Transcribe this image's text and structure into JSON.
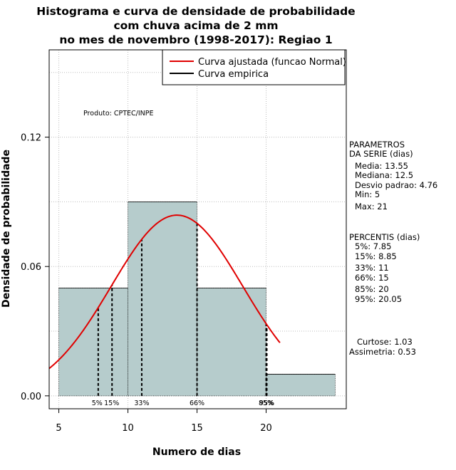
{
  "chart_data": {
    "type": "bar",
    "title_lines": [
      "Histograma e curva de densidade de probabilidade",
      "com chuva acima de 2 mm",
      "no mes de novembro (1998-2017): Regiao 1"
    ],
    "xlabel": "Numero de dias",
    "ylabel": "Densidade de probabilidade",
    "xlim": [
      4.3,
      25.8
    ],
    "ylim": [
      -0.006,
      0.1605
    ],
    "x_ticks": [
      5,
      10,
      15,
      20
    ],
    "x_tick_labels": [
      "5",
      "10",
      "15",
      "20"
    ],
    "y_ticks": [
      0.0,
      0.06,
      0.12
    ],
    "y_tick_labels": [
      "0.00",
      "0.06",
      "0.12"
    ],
    "grid": true,
    "grid_x": [
      5,
      10,
      15,
      20
    ],
    "grid_y": [
      0.0,
      0.03,
      0.06,
      0.09,
      0.12,
      0.15
    ],
    "bins": [
      {
        "x0": 5,
        "x1": 10,
        "density": 0.05
      },
      {
        "x0": 10,
        "x1": 15,
        "density": 0.09
      },
      {
        "x0": 15,
        "x1": 20,
        "density": 0.05
      },
      {
        "x0": 20,
        "x1": 25,
        "density": 0.01
      }
    ],
    "bar_color": "#b6cccc",
    "normal_curve": {
      "mean": 13.55,
      "sd": 4.76,
      "x_range": [
        4.3,
        21
      ],
      "color": "#e00000"
    },
    "percentile_lines": [
      {
        "x": 7.85,
        "label": "5%"
      },
      {
        "x": 8.85,
        "label": "15%"
      },
      {
        "x": 11,
        "label": "33%"
      },
      {
        "x": 15,
        "label": "66%"
      },
      {
        "x": 20,
        "label": "85%"
      },
      {
        "x": 20.05,
        "label": "95%"
      }
    ],
    "legend": {
      "position": "top-right",
      "entries": [
        {
          "label": "Curva ajustada (funcao Normal)",
          "color": "#e00000"
        },
        {
          "label": "Curva empirica",
          "color": "#000000"
        }
      ]
    },
    "annotation": "Produto: CPTEC/INPE"
  },
  "side_panel": {
    "parametros": [
      "PARAMETROS",
      "DA SERIE (dias)",
      "Media: 13.55",
      "Mediana: 12.5",
      "Desvio padrao: 4.76",
      "Min: 5",
      "Max: 21"
    ],
    "percentis": [
      "PERCENTIS (dias)",
      "5%: 7.85",
      "15%: 8.85",
      "33%: 11",
      "66%: 15",
      "85%: 20",
      "95%: 20.05"
    ],
    "stats": [
      "Curtose: 1.03",
      "Assimetria: 0.53"
    ]
  }
}
